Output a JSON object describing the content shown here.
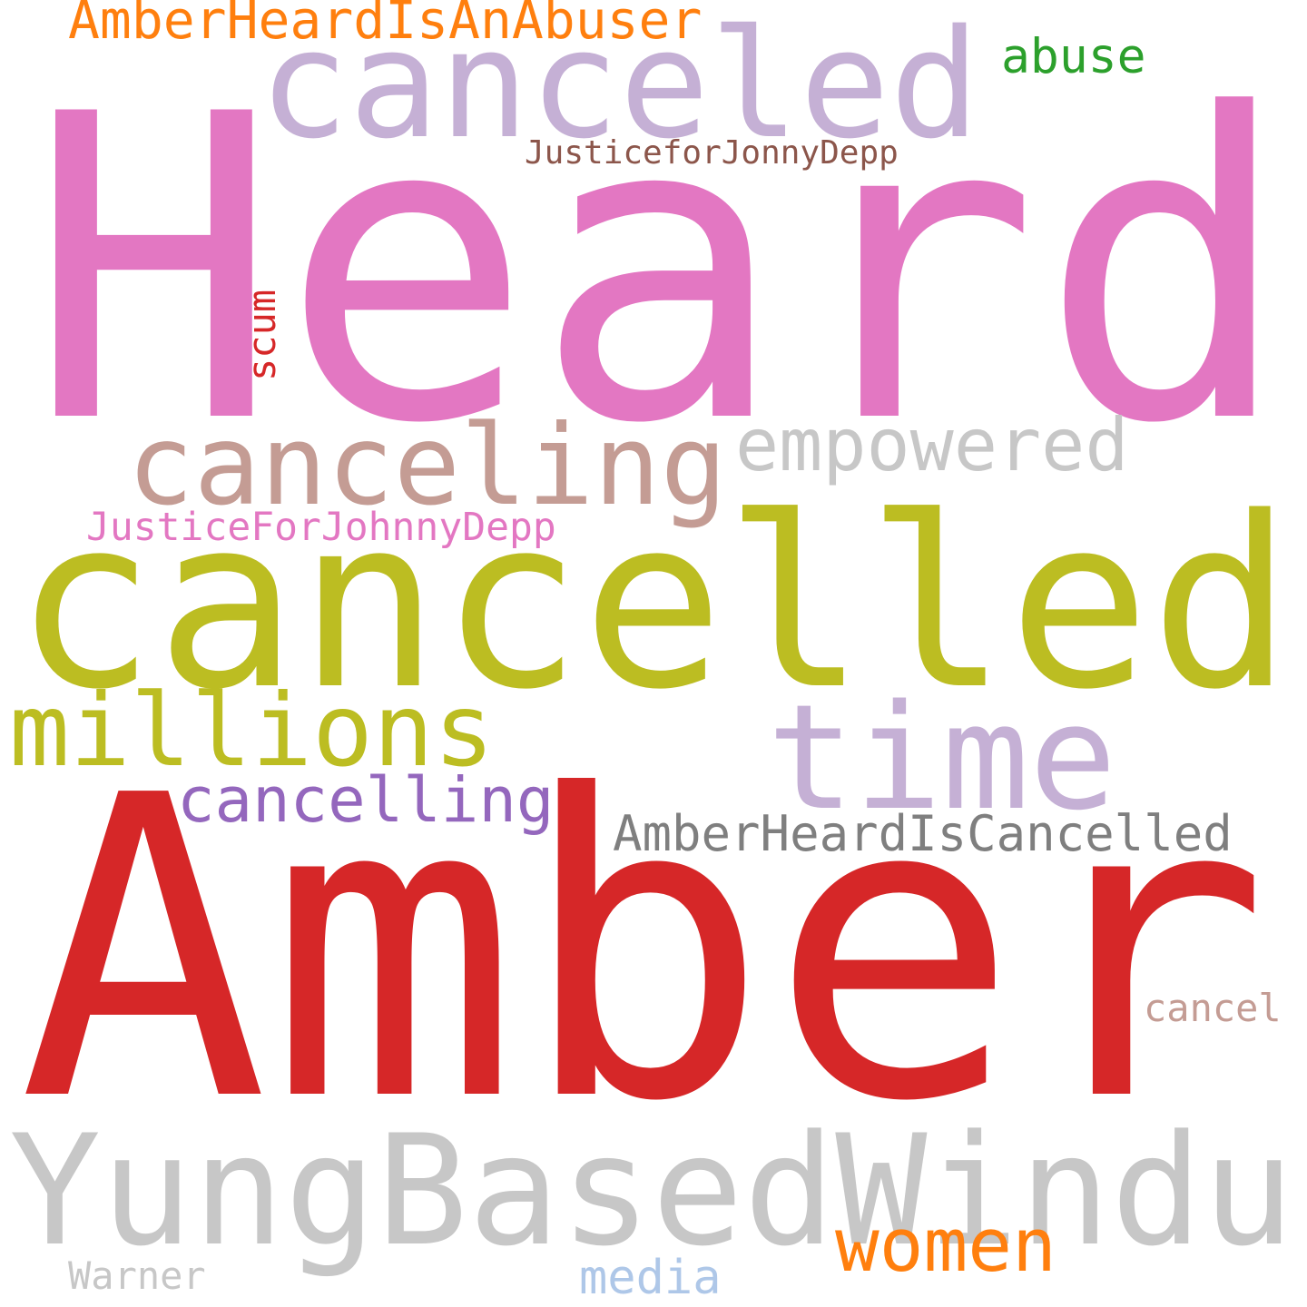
{
  "words": [
    {
      "text": "Heard",
      "color": "#e377c2"
    },
    {
      "text": "Amber",
      "color": "#d62728"
    },
    {
      "text": "cancelled",
      "color": "#bcbd22"
    },
    {
      "text": "YungBasedWindu",
      "color": "#c7c7c7"
    },
    {
      "text": "canceled",
      "color": "#c5b0d5"
    },
    {
      "text": "canceling",
      "color": "#c49c94"
    },
    {
      "text": "time",
      "color": "#c5b0d5"
    },
    {
      "text": "millions",
      "color": "#bcbd22"
    },
    {
      "text": "empowered",
      "color": "#c7c7c7"
    },
    {
      "text": "cancelling",
      "color": "#9467bd"
    },
    {
      "text": "AmberHeardIsCancelled",
      "color": "#7f7f7f"
    },
    {
      "text": "AmberHeardIsAnAbuser",
      "color": "#ff7f0e"
    },
    {
      "text": "JusticeForJohnnyDepp",
      "color": "#e377c2"
    },
    {
      "text": "JusticeforJonnyDepp",
      "color": "#8c564b"
    },
    {
      "text": "abuse",
      "color": "#2ca02c"
    },
    {
      "text": "women",
      "color": "#ff7f0e"
    },
    {
      "text": "cancel",
      "color": "#c49c94"
    },
    {
      "text": "media",
      "color": "#aec7e8"
    },
    {
      "text": "Warner",
      "color": "#c7c7c7"
    },
    {
      "text": "scum",
      "color": "#d62728"
    }
  ]
}
